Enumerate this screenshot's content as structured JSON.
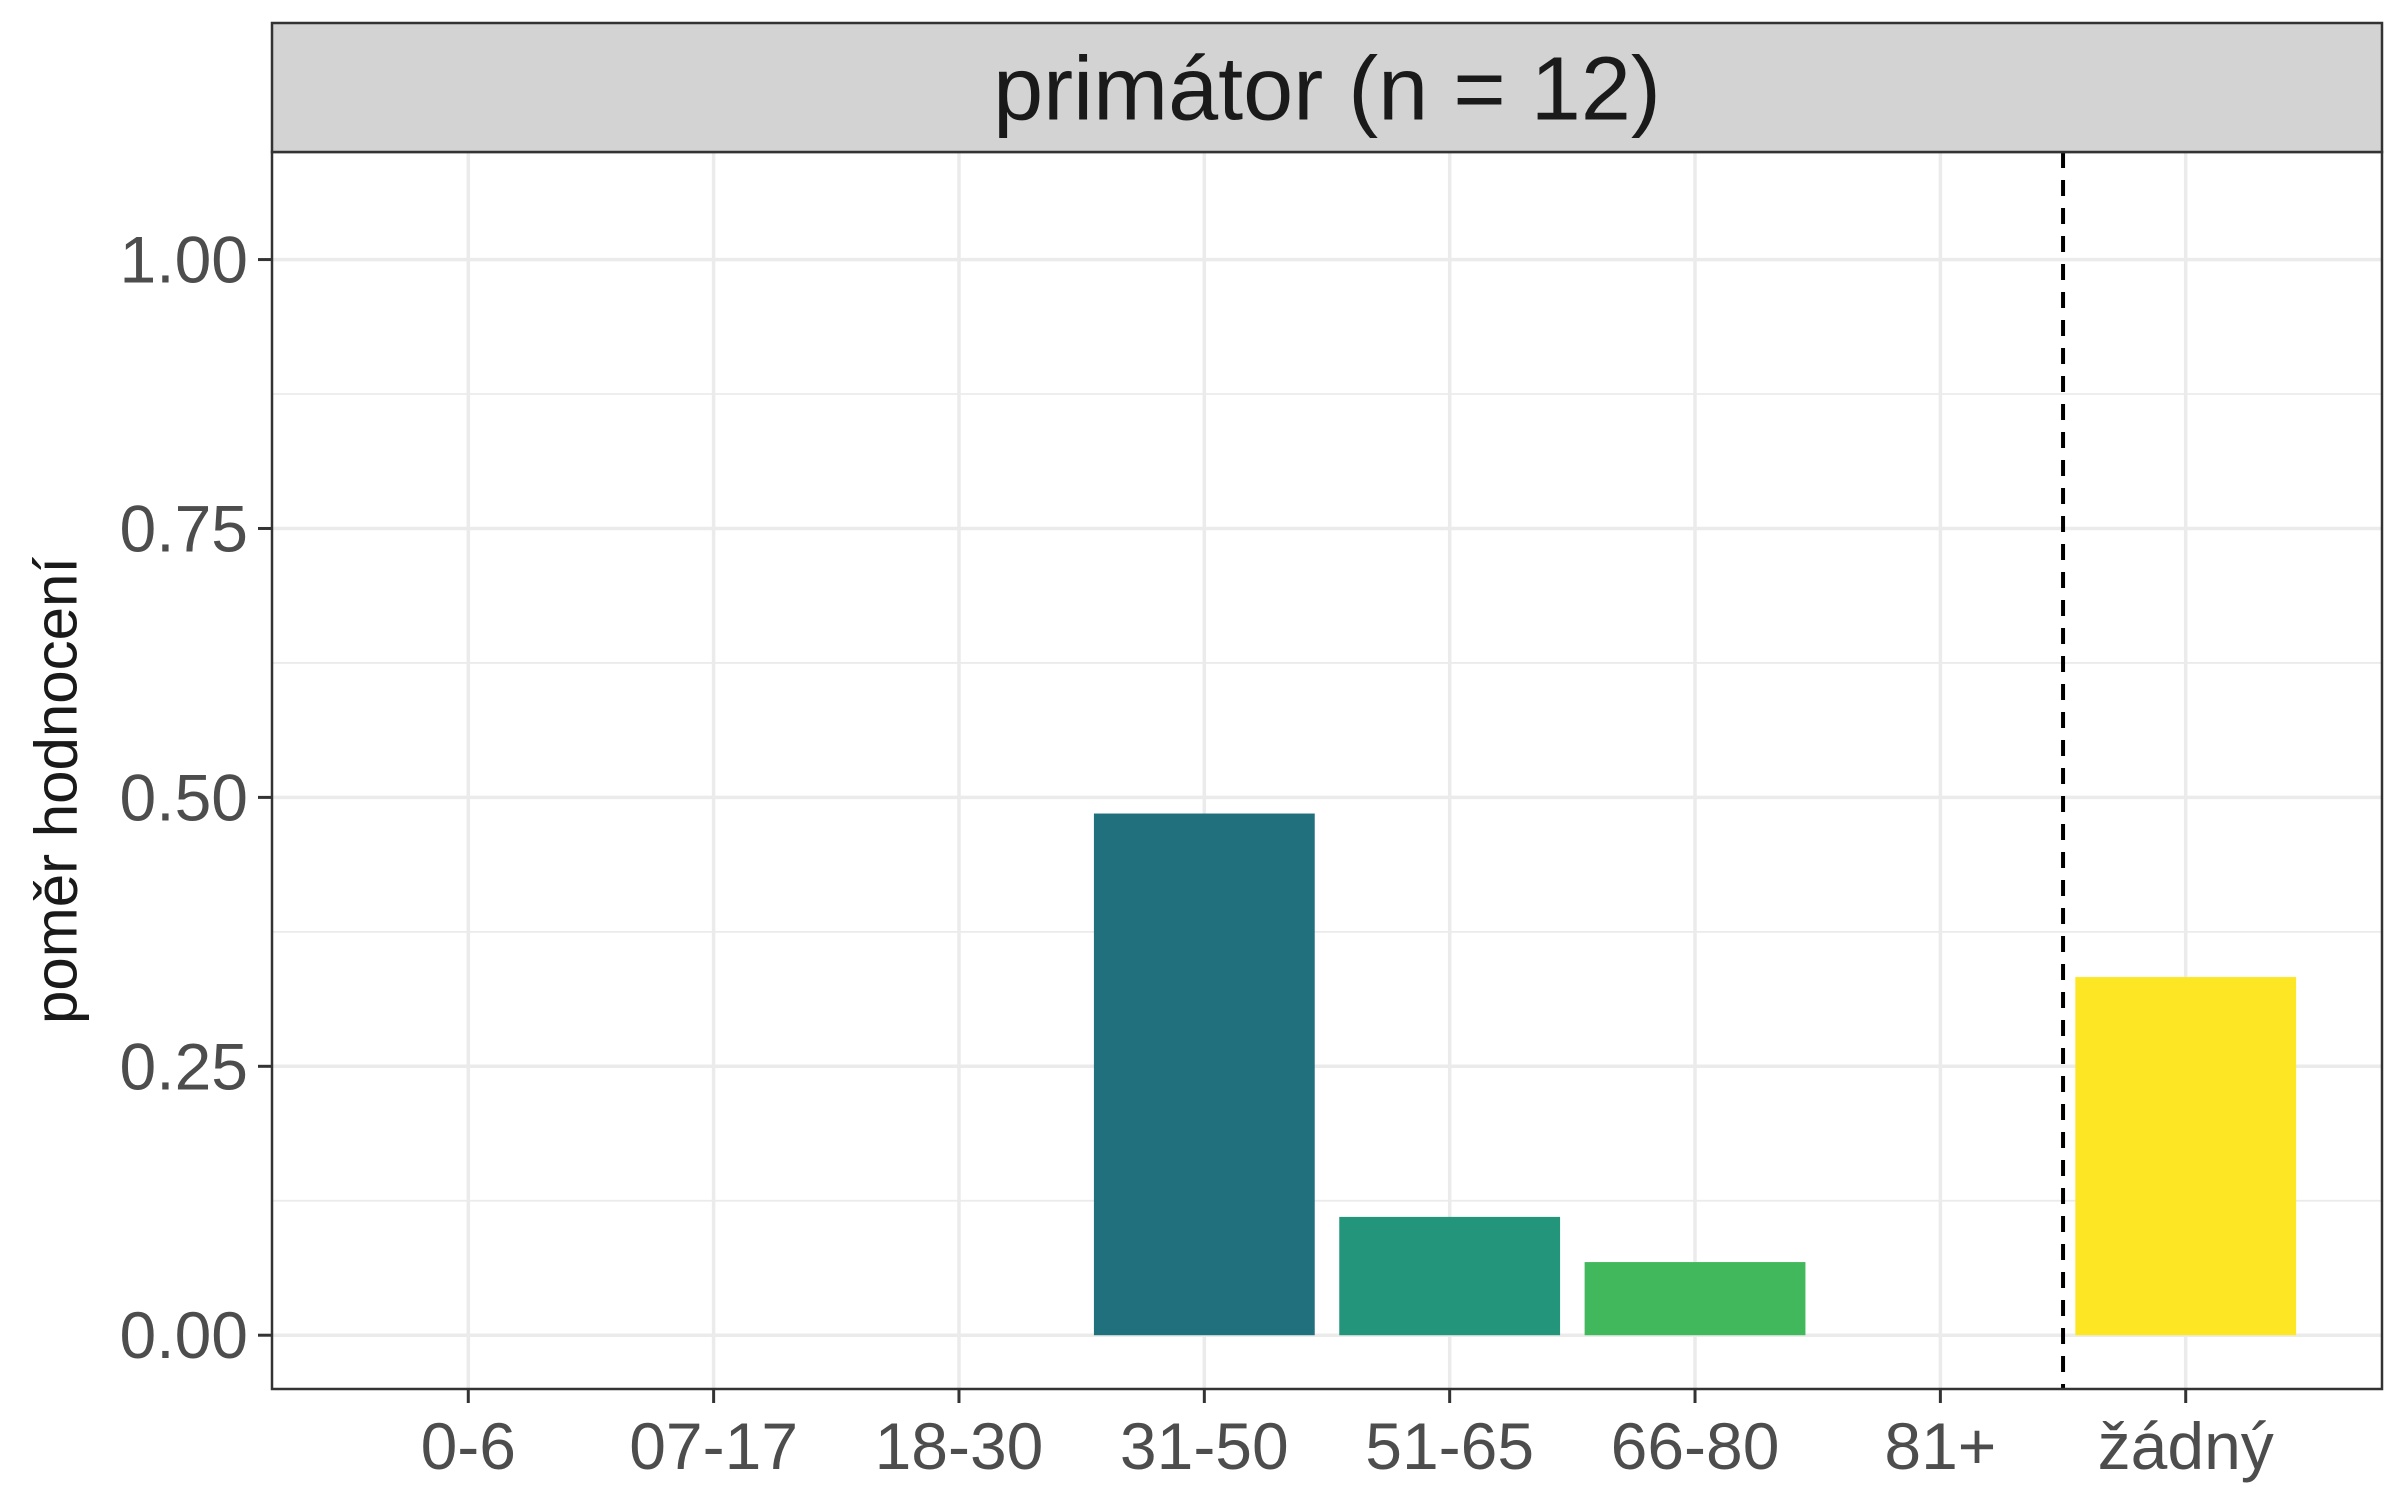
{
  "chart_data": {
    "type": "bar",
    "facet_title": "primátor (n = 12)",
    "xlabel": "",
    "ylabel": "poměr hodnocení",
    "categories": [
      "0-6",
      "07-17",
      "18-30",
      "31-50",
      "51-65",
      "66-80",
      "81+",
      "žádný"
    ],
    "values": [
      0,
      0,
      0,
      0.485,
      0.11,
      0.068,
      0,
      0.333
    ],
    "colors": [
      "#440154",
      "#46337e",
      "#365c8d",
      "#21707d",
      "#22957a",
      "#41b85b",
      "#9fda3a",
      "#fde725"
    ],
    "ylim": [
      -0.05,
      1.1
    ],
    "yticks": [
      "0.00",
      "0.25",
      "0.50",
      "0.75",
      "1.00"
    ],
    "ytick_values": [
      0,
      0.25,
      0.5,
      0.75,
      1.0
    ],
    "reference_line": {
      "style": "dashed",
      "between": [
        "81+",
        "žádný"
      ]
    },
    "grid": true,
    "legend": "none"
  }
}
